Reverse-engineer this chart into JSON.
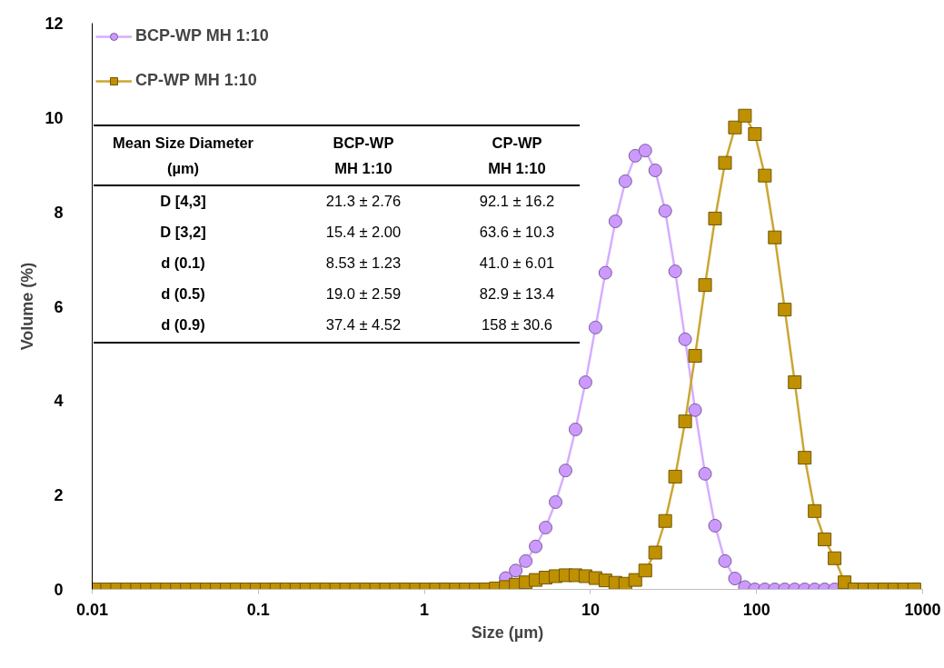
{
  "chart_data": {
    "type": "line",
    "xlabel": "Size (µm)",
    "ylabel": "Volume (%)",
    "log": "x",
    "xlim": [
      0.01,
      1000
    ],
    "xticks": [
      0.01,
      0.1,
      1,
      10,
      100,
      1000
    ],
    "ylim": [
      0,
      12
    ],
    "yticks": [
      0,
      2,
      4,
      6,
      8,
      10,
      12
    ],
    "legend": "top left",
    "series": [
      {
        "name": "BCP-WP MH 1:10",
        "color": "#cc99ff",
        "marker": "circle",
        "x": [
          3.09,
          3.548,
          4.074,
          4.677,
          5.37,
          6.166,
          7.079,
          8.128,
          9.333,
          10.72,
          12.3,
          14.13,
          16.22,
          18.62,
          21.38,
          24.55,
          28.18,
          32.36,
          37.15,
          42.66,
          48.98,
          56.23,
          64.57,
          74.13,
          85.11,
          97.72,
          112.2,
          128.8,
          147.9,
          169.8,
          195,
          223.9,
          257,
          295.1
        ],
        "values": [
          0.24,
          0.4,
          0.6,
          0.91,
          1.31,
          1.85,
          2.52,
          3.39,
          4.39,
          5.55,
          6.71,
          7.8,
          8.65,
          9.19,
          9.3,
          8.88,
          8.02,
          6.74,
          5.3,
          3.8,
          2.45,
          1.35,
          0.6,
          0.23,
          0.05,
          0,
          0,
          0,
          0,
          0,
          0,
          0,
          0,
          0
        ]
      },
      {
        "name": "CP-WP MH 1:10",
        "color": "#bf9000",
        "marker": "square",
        "x": [
          0.01072,
          0.0123,
          0.01413,
          0.01622,
          0.01862,
          0.02138,
          0.02455,
          0.02818,
          0.03236,
          0.03715,
          0.04266,
          0.04898,
          0.05623,
          0.06457,
          0.07413,
          0.08511,
          0.09772,
          0.1122,
          0.1288,
          0.1479,
          0.1698,
          0.195,
          0.2239,
          0.257,
          0.2951,
          0.3388,
          0.389,
          0.4467,
          0.5129,
          0.5888,
          0.6761,
          0.7762,
          0.8913,
          1.023,
          1.175,
          1.349,
          1.549,
          1.778,
          2.042,
          2.344,
          2.692,
          3.09,
          3.548,
          4.074,
          4.677,
          5.37,
          6.166,
          7.079,
          8.128,
          9.333,
          10.72,
          12.3,
          14.13,
          16.22,
          18.62,
          21.38,
          24.55,
          28.18,
          32.36,
          37.15,
          42.66,
          48.98,
          56.23,
          64.57,
          74.13,
          85.11,
          97.72,
          112.2,
          128.8,
          147.9,
          169.8,
          195,
          223.9,
          257,
          295.1,
          338.8,
          389,
          446.7,
          512.9,
          588.8,
          676.1,
          776.2,
          891.3
        ],
        "values": [
          0,
          0,
          0,
          0,
          0,
          0,
          0,
          0,
          0,
          0,
          0,
          0,
          0,
          0,
          0,
          0,
          0,
          0,
          0,
          0,
          0,
          0,
          0,
          0,
          0,
          0,
          0,
          0,
          0,
          0,
          0,
          0,
          0,
          0,
          0,
          0,
          0,
          0,
          0,
          0,
          0.02,
          0.05,
          0.1,
          0.15,
          0.2,
          0.25,
          0.28,
          0.3,
          0.3,
          0.28,
          0.24,
          0.19,
          0.14,
          0.12,
          0.2,
          0.4,
          0.78,
          1.45,
          2.39,
          3.56,
          4.95,
          6.45,
          7.86,
          9.04,
          9.79,
          10.04,
          9.65,
          8.77,
          7.46,
          5.93,
          4.39,
          2.79,
          1.66,
          1.06,
          0.66,
          0.15,
          0,
          0,
          0,
          0,
          0,
          0,
          0
        ]
      }
    ],
    "annotations": [
      "Mean Size Diameter\n(µm)",
      "BCP-WP\nMH 1:10",
      "CP-WP\nMH 1:10",
      "D [4,3]",
      "21.3 ± 2.76",
      "92.1 ± 16.2",
      "D [3,2]",
      "15.4 ± 2.00",
      "63.6 ± 10.3",
      "d (0.1)",
      "8.53 ± 1.23",
      "41.0 ± 6.01",
      "d (0.5)",
      "19.0 ± 2.59",
      "82.9 ± 13.4",
      "d (0.9)",
      "37.4 ± 4.52",
      "158 ± 30.6"
    ]
  }
}
